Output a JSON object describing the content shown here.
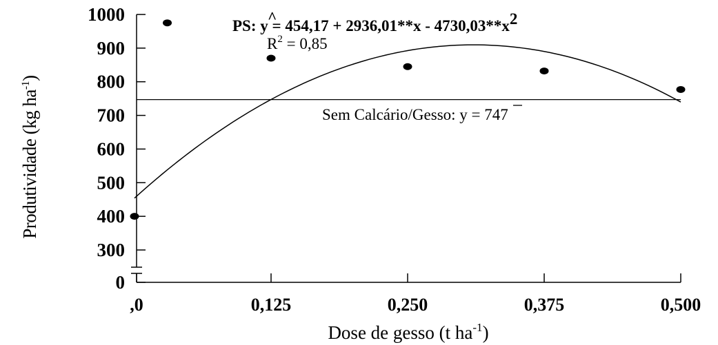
{
  "chart_data": {
    "type": "scatter",
    "xlabel_main": "Dose de gesso (t ha",
    "xlabel_sup": "-1",
    "xlabel_end": ")",
    "ylabel_main": "Produtividade (kg ha",
    "ylabel_sup": "-1",
    "ylabel_end": ")",
    "x_ticks": [
      {
        "value": 0,
        "label": ",0"
      },
      {
        "value": 0.125,
        "label": "0,125"
      },
      {
        "value": 0.25,
        "label": "0,250"
      },
      {
        "value": 0.375,
        "label": "0,375"
      },
      {
        "value": 0.5,
        "label": "0,500"
      }
    ],
    "y_ticks": [
      {
        "value": 0,
        "label": "0"
      },
      {
        "value": 300,
        "label": "300"
      },
      {
        "value": 400,
        "label": "400"
      },
      {
        "value": 500,
        "label": "500"
      },
      {
        "value": 600,
        "label": "600"
      },
      {
        "value": 700,
        "label": "700"
      },
      {
        "value": 800,
        "label": "800"
      },
      {
        "value": 900,
        "label": "900"
      },
      {
        "value": 1000,
        "label": "1000"
      }
    ],
    "xlim": [
      0,
      0.5
    ],
    "ylim": [
      0,
      1000
    ],
    "y_axis_break": true,
    "grid": false,
    "points": [
      {
        "x": 0,
        "y": 400
      },
      {
        "x": 0.03,
        "y": 975
      },
      {
        "x": 0.125,
        "y": 870
      },
      {
        "x": 0.25,
        "y": 845
      },
      {
        "x": 0.375,
        "y": 832
      },
      {
        "x": 0.5,
        "y": 777
      }
    ],
    "fit_curve": {
      "intercept": 454.17,
      "b1": 2936.01,
      "b2": -4730.03
    },
    "reference_line": {
      "y": 747
    },
    "annotations": {
      "eq_prefix": "PS: ",
      "eq_yhat": "y",
      "eq_hat_mark": "^",
      "eq_body": " = 454,17 + 2936,01**x - 4730,03**x",
      "eq_sup": "2",
      "r2_prefix": "R",
      "r2_sup": "2",
      "r2_rest": " = 0,85",
      "ref_prefix": "Sem Calcário/Gesso: ",
      "ref_ybar": "y",
      "ref_rest": " = 747"
    }
  }
}
